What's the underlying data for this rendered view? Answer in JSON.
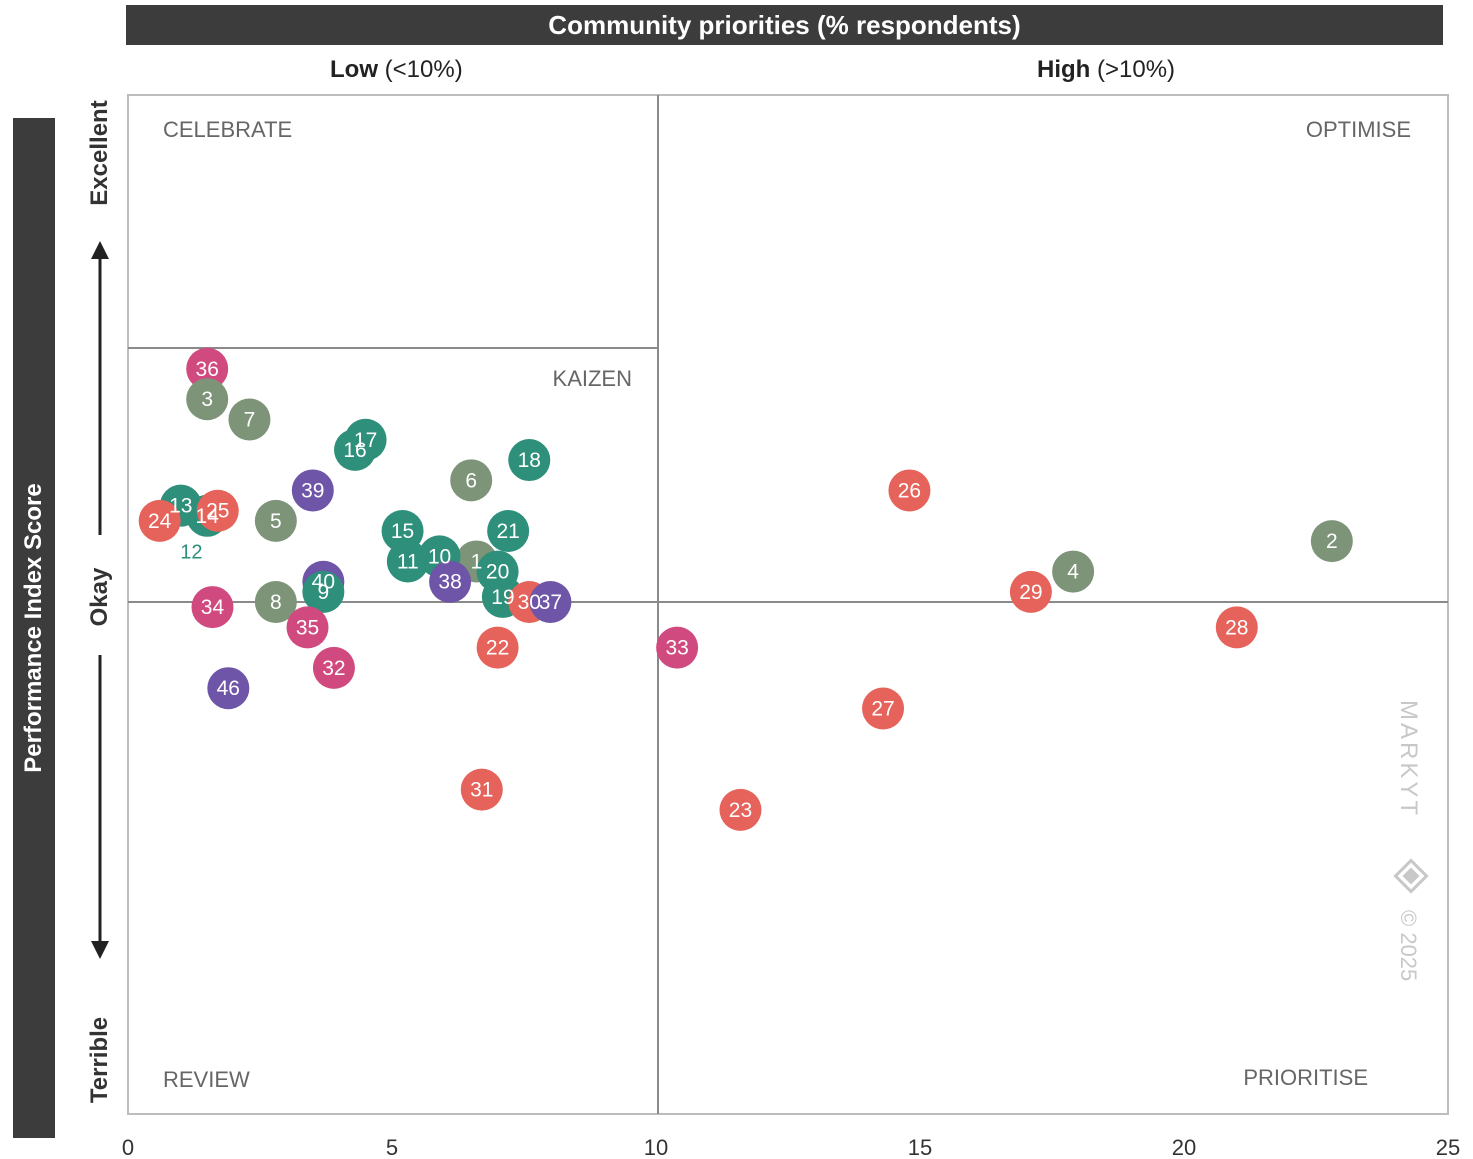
{
  "chart_data": {
    "type": "scatter",
    "title": "Community priorities (% respondents)",
    "ylabel": "Performance Index Score",
    "column_headers": [
      {
        "bold": "Low",
        "rest": " (<10%)"
      },
      {
        "bold": "High",
        "rest": " (>10%)"
      }
    ],
    "y_ticks": [
      "Excellent",
      "Okay",
      "Terrible"
    ],
    "xlim": [
      0,
      25
    ],
    "x_ticks": [
      "0",
      "5",
      "10",
      "15",
      "20",
      "25"
    ],
    "ylim": [
      -100,
      100
    ],
    "quadrants": [
      "CELEBRATE",
      "KAIZEN",
      "OPTIMISE",
      "REVIEW",
      "PRIORITISE"
    ],
    "watermark": {
      "brand": "MARKYT",
      "copyright": "© 2025"
    },
    "colors": {
      "olive": "#7d9479",
      "teal": "#2e8f7a",
      "purple": "#6f55a8",
      "coral": "#e5635a",
      "pink": "#d14a7f"
    },
    "points": [
      {
        "id": "36",
        "x": 1.5,
        "y": 46,
        "color": "pink"
      },
      {
        "id": "3",
        "x": 1.5,
        "y": 40,
        "color": "olive"
      },
      {
        "id": "7",
        "x": 2.3,
        "y": 36,
        "color": "olive"
      },
      {
        "id": "17",
        "x": 4.5,
        "y": 32,
        "color": "teal"
      },
      {
        "id": "16",
        "x": 4.3,
        "y": 30,
        "color": "teal"
      },
      {
        "id": "18",
        "x": 7.6,
        "y": 28,
        "color": "teal"
      },
      {
        "id": "6",
        "x": 6.5,
        "y": 24,
        "color": "olive"
      },
      {
        "id": "39",
        "x": 3.5,
        "y": 22,
        "color": "purple"
      },
      {
        "id": "26",
        "x": 14.8,
        "y": 22,
        "color": "coral"
      },
      {
        "id": "13",
        "x": 1.0,
        "y": 19,
        "color": "teal"
      },
      {
        "id": "14",
        "x": 1.5,
        "y": 17,
        "color": "teal"
      },
      {
        "id": "25",
        "x": 1.7,
        "y": 18,
        "color": "coral"
      },
      {
        "id": "24",
        "x": 0.6,
        "y": 16,
        "color": "coral"
      },
      {
        "id": "5",
        "x": 2.8,
        "y": 16,
        "color": "olive"
      },
      {
        "id": "15",
        "x": 5.2,
        "y": 14,
        "color": "teal"
      },
      {
        "id": "21",
        "x": 7.2,
        "y": 14,
        "color": "teal"
      },
      {
        "id": "2",
        "x": 22.8,
        "y": 12,
        "color": "olive"
      },
      {
        "id": "1",
        "x": 6.6,
        "y": 8,
        "color": "olive"
      },
      {
        "id": "10",
        "x": 5.9,
        "y": 9,
        "color": "teal"
      },
      {
        "id": "11",
        "x": 5.3,
        "y": 8,
        "color": "teal"
      },
      {
        "id": "20",
        "x": 7.0,
        "y": 6,
        "color": "teal"
      },
      {
        "id": "4",
        "x": 17.9,
        "y": 6,
        "color": "olive"
      },
      {
        "id": "38",
        "x": 6.1,
        "y": 4,
        "color": "purple"
      },
      {
        "id": "40",
        "x": 3.7,
        "y": 4,
        "color": "purple"
      },
      {
        "id": "9",
        "x": 3.7,
        "y": 2,
        "color": "teal"
      },
      {
        "id": "19",
        "x": 7.1,
        "y": 1,
        "color": "teal"
      },
      {
        "id": "29",
        "x": 17.1,
        "y": 2,
        "color": "coral"
      },
      {
        "id": "30",
        "x": 7.6,
        "y": 0,
        "color": "coral"
      },
      {
        "id": "37",
        "x": 8.0,
        "y": 0,
        "color": "purple"
      },
      {
        "id": "8",
        "x": 2.8,
        "y": 0,
        "color": "olive"
      },
      {
        "id": "34",
        "x": 1.6,
        "y": -1,
        "color": "pink"
      },
      {
        "id": "35",
        "x": 3.4,
        "y": -5,
        "color": "pink"
      },
      {
        "id": "28",
        "x": 21.0,
        "y": -5,
        "color": "coral"
      },
      {
        "id": "22",
        "x": 7.0,
        "y": -9,
        "color": "coral"
      },
      {
        "id": "33",
        "x": 10.4,
        "y": -9,
        "color": "pink"
      },
      {
        "id": "32",
        "x": 3.9,
        "y": -13,
        "color": "pink"
      },
      {
        "id": "46",
        "x": 1.9,
        "y": -17,
        "color": "purple"
      },
      {
        "id": "27",
        "x": 14.3,
        "y": -21,
        "color": "coral"
      },
      {
        "id": "31",
        "x": 6.7,
        "y": -37,
        "color": "coral"
      },
      {
        "id": "23",
        "x": 11.6,
        "y": -41,
        "color": "coral"
      }
    ],
    "label_only": [
      {
        "id": "12",
        "x": 1.2,
        "y": 10,
        "color": "teal"
      }
    ]
  }
}
